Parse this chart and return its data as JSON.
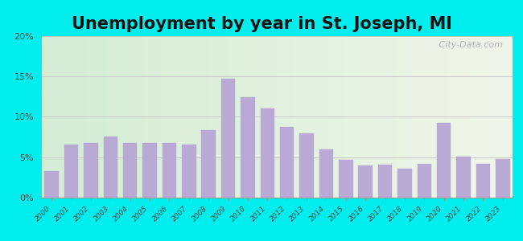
{
  "title": "Unemployment by year in St. Joseph, MI",
  "years": [
    2000,
    2001,
    2002,
    2003,
    2004,
    2005,
    2006,
    2007,
    2008,
    2009,
    2010,
    2011,
    2012,
    2013,
    2014,
    2015,
    2016,
    2017,
    2018,
    2019,
    2020,
    2021,
    2022,
    2023
  ],
  "values": [
    3.3,
    6.6,
    6.8,
    7.6,
    6.8,
    6.8,
    6.8,
    6.6,
    8.4,
    14.7,
    12.4,
    11.0,
    8.8,
    8.0,
    6.0,
    4.7,
    4.0,
    4.1,
    3.6,
    4.2,
    9.3,
    5.1,
    4.2,
    4.8
  ],
  "bar_color": "#b8aad4",
  "ylim": [
    0,
    20
  ],
  "yticks": [
    0,
    5,
    10,
    15,
    20
  ],
  "ytick_labels": [
    "0%",
    "5%",
    "10%",
    "15%",
    "20%"
  ],
  "bg_outer": "#00eeee",
  "bg_left": "#d4edd4",
  "bg_right": "#f0f5ea",
  "grid_color": "#c8c8c8",
  "title_fontsize": 15,
  "watermark": " City-Data.com",
  "watermark_icon": "●"
}
